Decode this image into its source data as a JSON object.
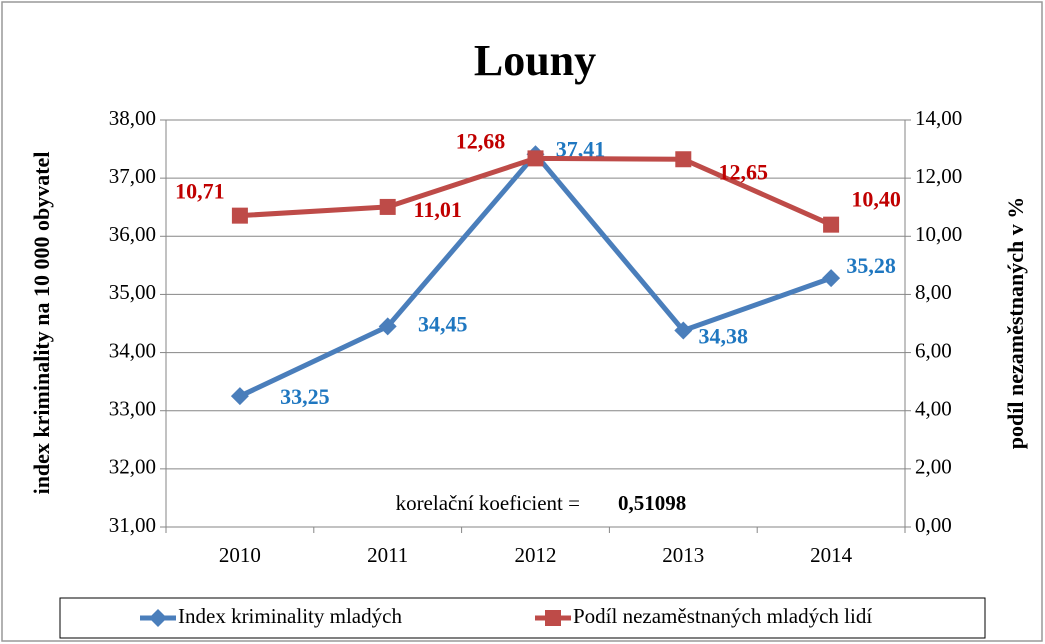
{
  "chart_data": {
    "type": "line",
    "title": "Louny",
    "categories": [
      "2010",
      "2011",
      "2012",
      "2013",
      "2014"
    ],
    "ylabel": "index kriminality na 10 000 obyvatel",
    "y2label": "podíl nezaměstnaných v %",
    "ylim": [
      31,
      38
    ],
    "yticks": [
      {
        "value": 31,
        "label": "31,00"
      },
      {
        "value": 32,
        "label": "32,00"
      },
      {
        "value": 33,
        "label": "33,00"
      },
      {
        "value": 34,
        "label": "34,00"
      },
      {
        "value": 35,
        "label": "35,00"
      },
      {
        "value": 36,
        "label": "36,00"
      },
      {
        "value": 37,
        "label": "37,00"
      },
      {
        "value": 38,
        "label": "38,00"
      }
    ],
    "y2lim": [
      0,
      14
    ],
    "y2ticks": [
      {
        "value": 0,
        "label": "0,00"
      },
      {
        "value": 2,
        "label": "2,00"
      },
      {
        "value": 4,
        "label": "4,00"
      },
      {
        "value": 6,
        "label": "6,00"
      },
      {
        "value": 8,
        "label": "8,00"
      },
      {
        "value": 10,
        "label": "10,00"
      },
      {
        "value": 12,
        "label": "12,00"
      },
      {
        "value": 14,
        "label": "14,00"
      }
    ],
    "series": [
      {
        "name": "Index kriminality mladých",
        "color": "#4a7ebb",
        "label_color": "#1f77c0",
        "marker": "diamond",
        "values": [
          33.25,
          34.45,
          37.41,
          34.38,
          35.28
        ],
        "value_labels": [
          "33,25",
          "34,45",
          "37,41",
          "34,38",
          "35,28"
        ]
      },
      {
        "name": "Podíl nezaměstnaných mladých lidí",
        "color": "#be4b48",
        "label_color": "#c00000",
        "marker": "square",
        "axis": "y2",
        "values": [
          10.71,
          11.01,
          12.68,
          12.65,
          10.4
        ],
        "value_labels": [
          "10,71",
          "11,01",
          "12,68",
          "12,65",
          "10,40"
        ]
      }
    ],
    "annotation": {
      "text": "korelační koeficient =",
      "value": "0,51098"
    },
    "grid": true,
    "legend": "bottom"
  }
}
